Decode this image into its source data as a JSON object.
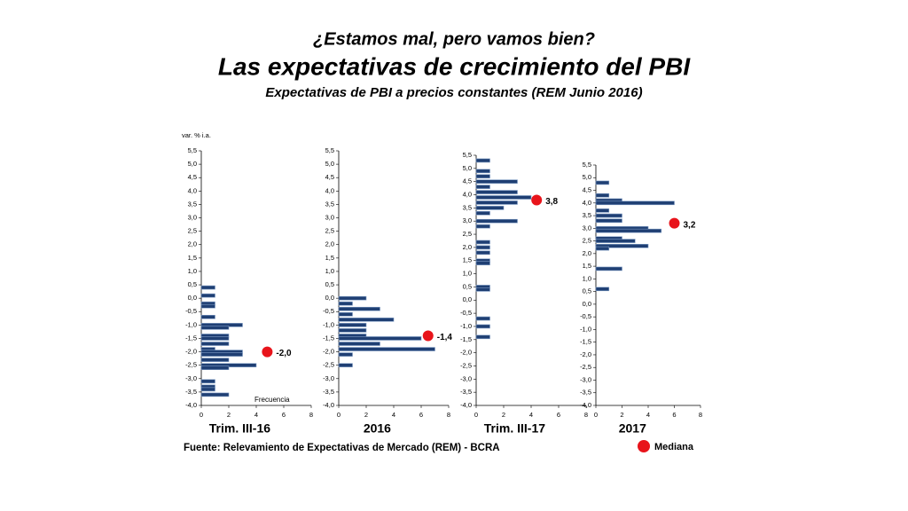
{
  "header": {
    "supertitle": "¿Estamos mal, pero vamos bien?",
    "title": "Las expectativas de crecimiento del PBI",
    "subtitle": "Expectativas de PBI a precios constantes (REM Junio 2016)"
  },
  "y_unit": "var. % i.a.",
  "x_label": "Frecuencia",
  "source": "Fuente: Relevamiento de Expectativas de Mercado (REM) - BCRA",
  "median_name": "Mediana",
  "chart_data": [
    {
      "type": "hbar",
      "title": "Trim. III-16",
      "color": "#1f3f73",
      "median_color": "#e8141b",
      "y": [
        0.4,
        0.1,
        -0.2,
        -0.3,
        -0.7,
        -1.0,
        -1.1,
        -1.4,
        -1.5,
        -1.7,
        -1.9,
        -2.0,
        -2.1,
        -2.3,
        -2.5,
        -2.6,
        -3.1,
        -3.3,
        -3.4,
        -3.6
      ],
      "values": [
        1,
        1,
        1,
        1,
        1,
        3,
        2,
        2,
        2,
        2,
        1,
        3,
        3,
        2,
        4,
        2,
        1,
        1,
        1,
        2
      ],
      "median": -2.0,
      "median_label": "-2,0",
      "median_x": 4.8,
      "xlim": [
        0,
        8
      ],
      "xticks": [
        0,
        2,
        4,
        6,
        8
      ],
      "ylim": [
        -4,
        5.5
      ],
      "yticks": [
        {
          "value": 5.5,
          "label": "5,5"
        },
        {
          "value": 5,
          "label": "5,0"
        },
        {
          "value": 4.5,
          "label": "4,5"
        },
        {
          "value": 4,
          "label": "4,0"
        },
        {
          "value": 3.5,
          "label": "3,5"
        },
        {
          "value": 3,
          "label": "3,0"
        },
        {
          "value": 2.5,
          "label": "2,5"
        },
        {
          "value": 2,
          "label": "2,0"
        },
        {
          "value": 1.5,
          "label": "1,5"
        },
        {
          "value": 1,
          "label": "1,0"
        },
        {
          "value": 0.5,
          "label": "0,5"
        },
        {
          "value": 0,
          "label": "0,0"
        },
        {
          "value": -0.5,
          "label": "-0,5"
        },
        {
          "value": -1,
          "label": "-1,0"
        },
        {
          "value": -1.5,
          "label": "-1,5"
        },
        {
          "value": -2,
          "label": "-2,0"
        },
        {
          "value": -2.5,
          "label": "-2,5"
        },
        {
          "value": -3,
          "label": "-3,0"
        },
        {
          "value": -3.5,
          "label": "-3,5"
        },
        {
          "value": -4,
          "label": "-4,0"
        }
      ]
    },
    {
      "type": "hbar",
      "title": "2016",
      "color": "#1f3f73",
      "median_color": "#e8141b",
      "y": [
        0.0,
        -0.2,
        -0.4,
        -0.6,
        -0.8,
        -1.0,
        -1.2,
        -1.4,
        -1.5,
        -1.7,
        -1.9,
        -2.1,
        -2.5
      ],
      "values": [
        2,
        1,
        3,
        1,
        4,
        2,
        2,
        2,
        6,
        3,
        7,
        1,
        1
      ],
      "median": -1.4,
      "median_label": "-1,4",
      "median_x": 6.5,
      "xlim": [
        0,
        8
      ],
      "xticks": [
        0,
        2,
        4,
        6,
        8
      ],
      "ylim": [
        -4,
        5.5
      ],
      "yticks": [
        {
          "value": 5.5,
          "label": "5,5"
        },
        {
          "value": 5,
          "label": "5,0"
        },
        {
          "value": 4.5,
          "label": "4,5"
        },
        {
          "value": 4,
          "label": "4,0"
        },
        {
          "value": 3.5,
          "label": "3,5"
        },
        {
          "value": 3,
          "label": "3,0"
        },
        {
          "value": 2.5,
          "label": "2,5"
        },
        {
          "value": 2,
          "label": "2,0"
        },
        {
          "value": 1.5,
          "label": "1,5"
        },
        {
          "value": 1,
          "label": "1,0"
        },
        {
          "value": 0.5,
          "label": "0,5"
        },
        {
          "value": 0,
          "label": "0,0"
        },
        {
          "value": -0.5,
          "label": "-0,5"
        },
        {
          "value": -1,
          "label": "-1,0"
        },
        {
          "value": -1.5,
          "label": "-1,5"
        },
        {
          "value": -2,
          "label": "-2,0"
        },
        {
          "value": -2.5,
          "label": "-2,5"
        },
        {
          "value": -3,
          "label": "-3,0"
        },
        {
          "value": -3.5,
          "label": "-3,5"
        },
        {
          "value": -4,
          "label": "-4,0"
        }
      ]
    },
    {
      "type": "hbar",
      "title": "Trim. III-17",
      "color": "#1f3f73",
      "median_color": "#e8141b",
      "y": [
        5.3,
        4.9,
        4.7,
        4.5,
        4.3,
        4.1,
        3.9,
        3.7,
        3.5,
        3.3,
        3.0,
        2.8,
        2.2,
        2.0,
        1.8,
        1.5,
        1.4,
        0.5,
        0.4,
        -0.7,
        -1.0,
        -1.4
      ],
      "values": [
        1,
        1,
        1,
        3,
        1,
        3,
        4,
        3,
        2,
        1,
        3,
        1,
        1,
        1,
        1,
        1,
        1,
        1,
        1,
        1,
        1,
        1
      ],
      "median": 3.8,
      "median_label": "3,8",
      "median_x": 4.4,
      "xlim": [
        0,
        8
      ],
      "xticks": [
        0,
        2,
        4,
        6,
        8
      ],
      "ylim": [
        -4,
        5.5
      ],
      "yticks": [
        {
          "value": 5.5,
          "label": "5,5"
        },
        {
          "value": 5,
          "label": "5,0"
        },
        {
          "value": 4.5,
          "label": "4,5"
        },
        {
          "value": 4,
          "label": "4,0"
        },
        {
          "value": 3.5,
          "label": "3,5"
        },
        {
          "value": 3,
          "label": "3,0"
        },
        {
          "value": 2.5,
          "label": "2,5"
        },
        {
          "value": 2,
          "label": "2,0"
        },
        {
          "value": 1.5,
          "label": "1,5"
        },
        {
          "value": 1,
          "label": "1,0"
        },
        {
          "value": 0.5,
          "label": "0,5"
        },
        {
          "value": 0,
          "label": "0,0"
        },
        {
          "value": -0.5,
          "label": "-0,5"
        },
        {
          "value": -1,
          "label": "-1,0"
        },
        {
          "value": -1.5,
          "label": "-1,5"
        },
        {
          "value": -2,
          "label": "-2,0"
        },
        {
          "value": -2.5,
          "label": "-2,5"
        },
        {
          "value": -3,
          "label": "-3,0"
        },
        {
          "value": -3.5,
          "label": "-3,5"
        },
        {
          "value": -4,
          "label": "-4,0"
        }
      ]
    },
    {
      "type": "hbar",
      "title": "2017",
      "color": "#1f3f73",
      "median_color": "#e8141b",
      "y": [
        4.8,
        4.3,
        4.1,
        4.0,
        3.7,
        3.5,
        3.3,
        3.0,
        2.9,
        2.6,
        2.5,
        2.3,
        2.2,
        1.4,
        0.6
      ],
      "values": [
        1,
        1,
        2,
        6,
        1,
        2,
        2,
        4,
        5,
        2,
        3,
        4,
        1,
        2,
        1
      ],
      "median": 3.2,
      "median_label": "3,2",
      "median_x": 6.0,
      "xlim": [
        0,
        8
      ],
      "xticks": [
        0,
        2,
        4,
        6,
        8
      ],
      "ylim": [
        -4,
        5.5
      ],
      "yticks": [
        {
          "value": 5.5,
          "label": "5,5"
        },
        {
          "value": 5,
          "label": "5,0"
        },
        {
          "value": 4.5,
          "label": "4,5"
        },
        {
          "value": 4,
          "label": "4,0"
        },
        {
          "value": 3.5,
          "label": "3,5"
        },
        {
          "value": 3,
          "label": "3,0"
        },
        {
          "value": 2.5,
          "label": "2,5"
        },
        {
          "value": 2,
          "label": "2,0"
        },
        {
          "value": 1.5,
          "label": "1,5"
        },
        {
          "value": 1,
          "label": "1,0"
        },
        {
          "value": 0.5,
          "label": "0,5"
        },
        {
          "value": 0,
          "label": "0,0"
        },
        {
          "value": -0.5,
          "label": "-0,5"
        },
        {
          "value": -1,
          "label": "-1,0"
        },
        {
          "value": -1.5,
          "label": "-1,5"
        },
        {
          "value": -2,
          "label": "-2,0"
        },
        {
          "value": -2.5,
          "label": "-2,5"
        },
        {
          "value": -3,
          "label": "-3,0"
        },
        {
          "value": -3.5,
          "label": "-3,5"
        },
        {
          "value": -4,
          "label": "-4,0"
        }
      ]
    }
  ]
}
